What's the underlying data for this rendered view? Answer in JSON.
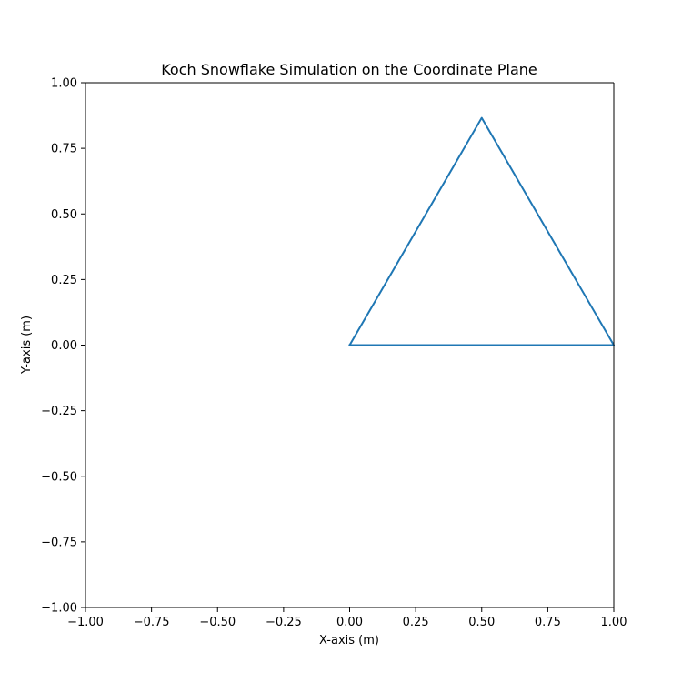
{
  "chart_data": {
    "type": "line",
    "title": "Koch Snowflake Simulation on the Coordinate Plane",
    "xlabel": "X-axis (m)",
    "ylabel": "Y-axis (m)",
    "xlim": [
      -1.0,
      1.0
    ],
    "ylim": [
      -1.0,
      1.0
    ],
    "xticks": [
      -1.0,
      -0.75,
      -0.5,
      -0.25,
      0.0,
      0.25,
      0.5,
      0.75,
      1.0
    ],
    "yticks": [
      -1.0,
      -0.75,
      -0.5,
      -0.25,
      0.0,
      0.25,
      0.5,
      0.75,
      1.0
    ],
    "xtick_labels": [
      "−1.00",
      "−0.75",
      "−0.50",
      "−0.25",
      "0.00",
      "0.25",
      "0.50",
      "0.75",
      "1.00"
    ],
    "ytick_labels": [
      "−1.00",
      "−0.75",
      "−0.50",
      "−0.25",
      "0.00",
      "0.25",
      "0.50",
      "0.75",
      "1.00"
    ],
    "grid": false,
    "series": [
      {
        "color": "#1f77b4",
        "x": [
          0.0,
          0.5,
          1.0,
          0.0
        ],
        "y": [
          0.0,
          0.866,
          0.0,
          0.0
        ]
      }
    ]
  }
}
